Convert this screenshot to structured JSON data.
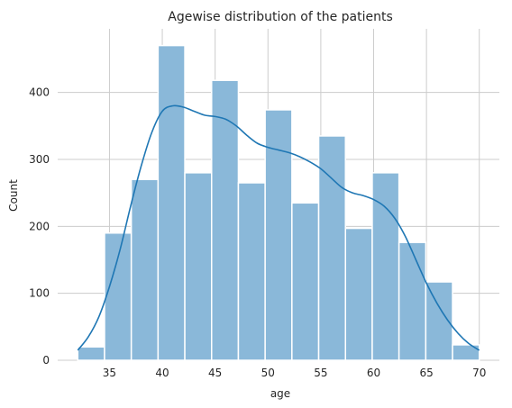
{
  "chart_data": {
    "type": "bar",
    "title": "Agewise distribution of the patients",
    "xlabel": "age",
    "ylabel": "Count",
    "bin_edges": [
      32.0,
      34.5333,
      37.0667,
      39.6,
      42.1333,
      44.6667,
      47.2,
      49.7333,
      52.2667,
      54.8,
      57.3333,
      59.8667,
      62.4,
      64.9333,
      67.4667,
      70.0
    ],
    "values": [
      20,
      190,
      270,
      470,
      280,
      418,
      265,
      374,
      235,
      335,
      197,
      280,
      176,
      117,
      23
    ],
    "kde": {
      "x": [
        32,
        33,
        34,
        35,
        36,
        37,
        38,
        39,
        40,
        41,
        42,
        43,
        44,
        45,
        46,
        47,
        48,
        49,
        50,
        51,
        52,
        53,
        54,
        55,
        56,
        57,
        58,
        59,
        60,
        61,
        62,
        63,
        64,
        65,
        66,
        67,
        68,
        69,
        70
      ],
      "y": [
        15,
        35,
        65,
        110,
        165,
        230,
        290,
        340,
        372,
        380,
        378,
        372,
        366,
        364,
        360,
        350,
        336,
        324,
        318,
        314,
        310,
        304,
        296,
        286,
        272,
        258,
        250,
        246,
        240,
        230,
        212,
        185,
        150,
        115,
        85,
        60,
        40,
        25,
        15
      ]
    },
    "xlim": [
      30.1,
      71.9
    ],
    "ylim": [
      0,
      495
    ],
    "xticks": [
      35,
      40,
      45,
      50,
      55,
      60,
      65,
      70
    ],
    "yticks": [
      0,
      100,
      200,
      300,
      400
    ],
    "grid": true,
    "colors": {
      "bar_fill": "#8ab8d9",
      "bar_edge": "#ffffff",
      "kde_line": "#1f77b4",
      "grid": "#cccccc",
      "text": "#262626"
    }
  }
}
